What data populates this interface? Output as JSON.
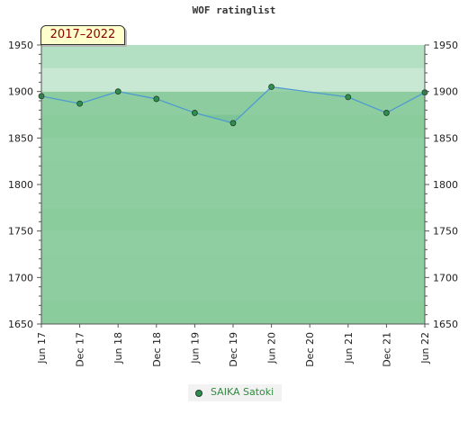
{
  "chart_data": {
    "type": "area",
    "title": "WOF ratinglist",
    "period_label": "2017–2022",
    "categories": [
      "Jun 17",
      "Dec 17",
      "Jun 18",
      "Dec 18",
      "Jun 19",
      "Dec 19",
      "Jun 20",
      "Dec 20",
      "Jun 21",
      "Dec 21",
      "Jun 22"
    ],
    "series": [
      {
        "name": "SAIKA Satoki",
        "points": [
          {
            "x": "Jun 17",
            "y": 1895
          },
          {
            "x": "Dec 17",
            "y": 1887
          },
          {
            "x": "Jun 18",
            "y": 1900
          },
          {
            "x": "Dec 18",
            "y": 1892
          },
          {
            "x": "Jun 19",
            "y": 1877
          },
          {
            "x": "Dec 19",
            "y": 1866
          },
          {
            "x": "Jun 20",
            "y": 1905
          },
          {
            "x": "Jun 21",
            "y": 1894
          },
          {
            "x": "Dec 21",
            "y": 1877
          },
          {
            "x": "Jun 22",
            "y": 1899
          }
        ]
      }
    ],
    "yticks": [
      1650,
      1700,
      1750,
      1800,
      1850,
      1900,
      1950
    ],
    "ylim": [
      1650,
      1950
    ],
    "y_axis_sides": "left and right",
    "grid": true,
    "legend_position": "bottom-center",
    "colors": {
      "band_dark": "#7dc596",
      "band_mid": "#8dcc9f",
      "band_light": "#9ad4ab",
      "band_lighter": "#b3dfc2",
      "band_pale": "#c9e8d4",
      "band_palest": "#deefe4",
      "area_fill": "#8dcc9f",
      "line": "#4f9ad0",
      "marker": "#2f8f4e",
      "marker_edge": "#1f3f2a"
    }
  }
}
